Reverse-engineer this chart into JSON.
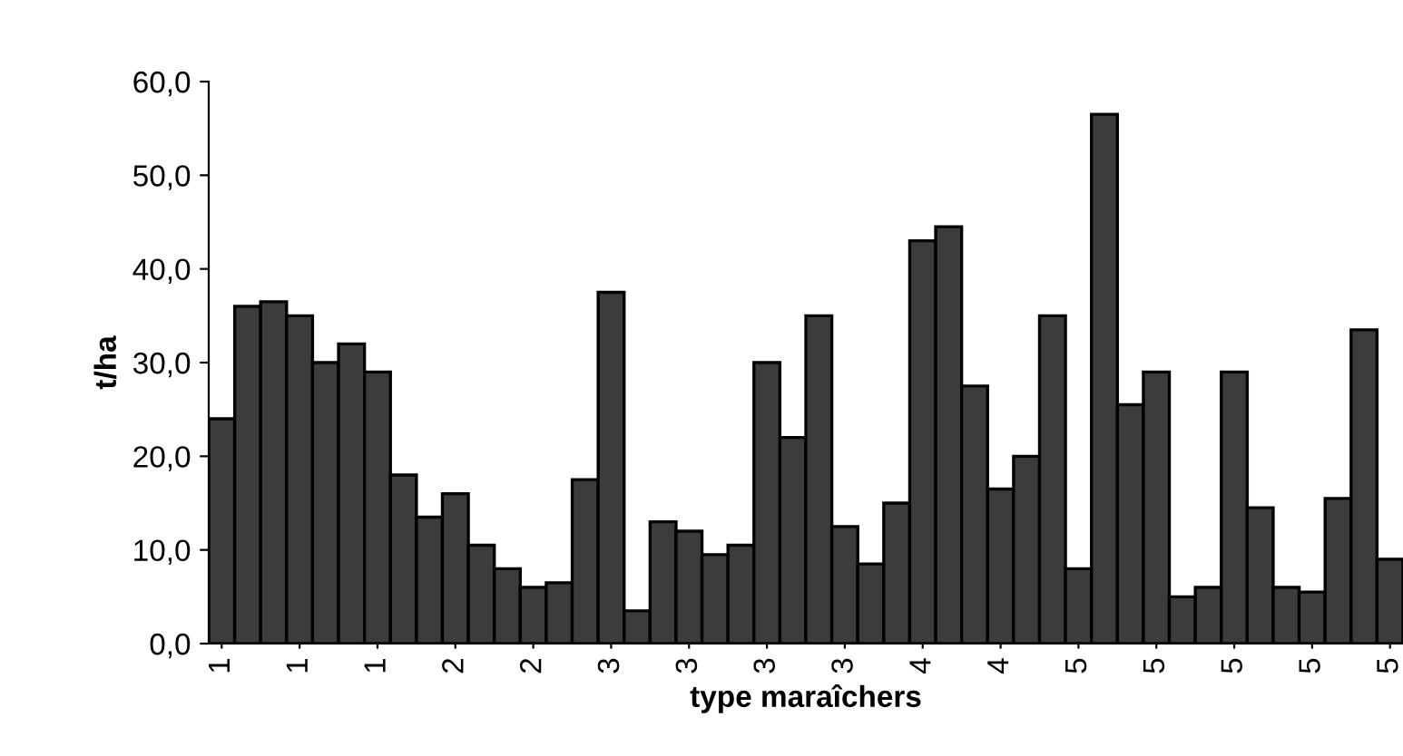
{
  "chart_data": {
    "type": "bar",
    "xlabel": "type maraîchers",
    "ylabel": "t/ha",
    "categories": [
      "1",
      null,
      null,
      "1",
      null,
      null,
      "1",
      null,
      null,
      "2",
      null,
      null,
      "2",
      null,
      null,
      "3",
      null,
      null,
      "3",
      null,
      null,
      "3",
      null,
      null,
      "3",
      null,
      null,
      "4",
      null,
      null,
      "4",
      null,
      null,
      "5",
      null,
      null,
      "5",
      null,
      null,
      "5",
      null,
      null,
      "5",
      null,
      null,
      "5"
    ],
    "values": [
      24,
      36,
      36.5,
      35,
      30,
      32,
      29,
      18,
      13.5,
      16,
      10.5,
      8,
      6,
      6.5,
      17.5,
      37.5,
      3.5,
      13,
      12,
      9.5,
      10.5,
      30,
      22,
      35,
      12.5,
      8.5,
      15,
      43,
      44.5,
      27.5,
      16.5,
      20,
      35,
      8,
      56.5,
      25.5,
      29,
      5,
      6,
      29,
      14.5,
      6,
      5.5,
      15.5,
      33.5,
      9
    ],
    "color": "#3c3c3c",
    "ylim": [
      0,
      60
    ],
    "yticks": [
      {
        "value": 0,
        "label": "0,0"
      },
      {
        "value": 10,
        "label": "10,0"
      },
      {
        "value": 20,
        "label": "20,0"
      },
      {
        "value": 30,
        "label": "30,0"
      },
      {
        "value": 40,
        "label": "40,0"
      },
      {
        "value": 50,
        "label": "50,0"
      },
      {
        "value": 60,
        "label": "60,0"
      }
    ],
    "grid": false
  }
}
